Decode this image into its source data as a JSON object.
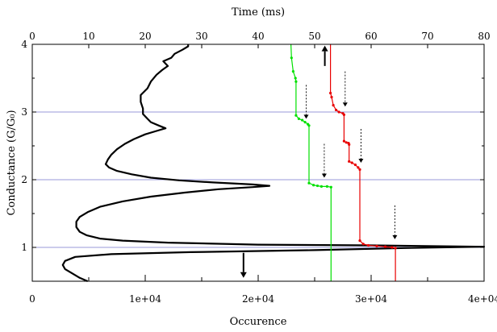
{
  "chart_data": {
    "type": "line",
    "title": "",
    "top_axis": {
      "label": "Time (ms)",
      "range": [
        0,
        80
      ],
      "ticks": [
        "0",
        "10",
        "20",
        "30",
        "40",
        "50",
        "60",
        "70",
        "80"
      ]
    },
    "bottom_axis": {
      "label": "Occurence",
      "range": [
        0,
        40000
      ],
      "ticks": [
        "0",
        "1e+04",
        "2e+04",
        "3e+04",
        "4e+04"
      ]
    },
    "left_axis": {
      "label": "Conductance (G/G₀)",
      "range": [
        0.5,
        4
      ],
      "ticks": [
        "1",
        "2",
        "3",
        "4"
      ]
    },
    "grid": {
      "horizontal_lines_at": [
        1,
        2,
        3
      ],
      "color": "#9a9ad8"
    },
    "series": [
      {
        "axis": "bottom",
        "color": "#000000",
        "points": [
          [
            4900,
            0.5
          ],
          [
            4200,
            0.55
          ],
          [
            3500,
            0.62
          ],
          [
            2900,
            0.68
          ],
          [
            2700,
            0.74
          ],
          [
            2900,
            0.8
          ],
          [
            3800,
            0.86
          ],
          [
            7000,
            0.9
          ],
          [
            14000,
            0.93
          ],
          [
            25000,
            0.96
          ],
          [
            33000,
            0.99
          ],
          [
            40000,
            1.01
          ],
          [
            30000,
            1.03
          ],
          [
            20000,
            1.04
          ],
          [
            12000,
            1.07
          ],
          [
            8000,
            1.1
          ],
          [
            6000,
            1.13
          ],
          [
            4800,
            1.18
          ],
          [
            4200,
            1.23
          ],
          [
            3900,
            1.3
          ],
          [
            3900,
            1.38
          ],
          [
            4200,
            1.45
          ],
          [
            4900,
            1.52
          ],
          [
            6000,
            1.6
          ],
          [
            8000,
            1.68
          ],
          [
            10500,
            1.75
          ],
          [
            13500,
            1.81
          ],
          [
            16500,
            1.86
          ],
          [
            19500,
            1.89
          ],
          [
            21000,
            1.91
          ],
          [
            19500,
            1.93
          ],
          [
            16000,
            1.96
          ],
          [
            13000,
            1.99
          ],
          [
            10500,
            2.03
          ],
          [
            8800,
            2.08
          ],
          [
            7500,
            2.13
          ],
          [
            6800,
            2.18
          ],
          [
            6500,
            2.23
          ],
          [
            6700,
            2.3
          ],
          [
            7000,
            2.37
          ],
          [
            7500,
            2.45
          ],
          [
            8200,
            2.53
          ],
          [
            9000,
            2.6
          ],
          [
            10000,
            2.67
          ],
          [
            11000,
            2.72
          ],
          [
            11800,
            2.76
          ],
          [
            11200,
            2.8
          ],
          [
            10500,
            2.85
          ],
          [
            10200,
            2.9
          ],
          [
            9800,
            2.97
          ],
          [
            9800,
            3.05
          ],
          [
            9600,
            3.15
          ],
          [
            9600,
            3.25
          ],
          [
            10200,
            3.35
          ],
          [
            10500,
            3.45
          ],
          [
            11000,
            3.55
          ],
          [
            11500,
            3.62
          ],
          [
            12000,
            3.68
          ],
          [
            11600,
            3.75
          ],
          [
            12300,
            3.8
          ],
          [
            12600,
            3.86
          ],
          [
            13300,
            3.92
          ],
          [
            13800,
            3.97
          ],
          [
            13800,
            4.0
          ]
        ]
      },
      {
        "axis": "top",
        "color": "#00e000",
        "points": [
          [
            45.8,
            4.0
          ],
          [
            45.9,
            3.8
          ],
          [
            46.2,
            3.6
          ],
          [
            46.6,
            3.5
          ],
          [
            46.7,
            3.45
          ],
          [
            46.7,
            2.95
          ],
          [
            47.2,
            2.9
          ],
          [
            47.8,
            2.88
          ],
          [
            48.3,
            2.85
          ],
          [
            48.8,
            2.82
          ],
          [
            49.0,
            2.8
          ],
          [
            49.0,
            1.95
          ],
          [
            49.8,
            1.92
          ],
          [
            50.5,
            1.91
          ],
          [
            51.2,
            1.9
          ],
          [
            52.2,
            1.9
          ],
          [
            52.9,
            1.89
          ],
          [
            52.9,
            0.5
          ]
        ]
      },
      {
        "axis": "top",
        "color": "#e80000",
        "points": [
          [
            52.8,
            4.0
          ],
          [
            52.8,
            3.28
          ],
          [
            53.0,
            3.22
          ],
          [
            53.3,
            3.1
          ],
          [
            53.8,
            3.03
          ],
          [
            54.3,
            3.0
          ],
          [
            55.0,
            2.98
          ],
          [
            55.2,
            2.96
          ],
          [
            55.2,
            2.57
          ],
          [
            55.6,
            2.55
          ],
          [
            56.0,
            2.54
          ],
          [
            56.1,
            2.52
          ],
          [
            56.1,
            2.27
          ],
          [
            56.6,
            2.25
          ],
          [
            57.2,
            2.22
          ],
          [
            57.7,
            2.18
          ],
          [
            58.0,
            2.15
          ],
          [
            58.0,
            1.1
          ],
          [
            58.6,
            1.05
          ],
          [
            59.5,
            1.03
          ],
          [
            61.0,
            1.02
          ],
          [
            62.5,
            1.01
          ],
          [
            63.7,
            1.0
          ],
          [
            64.3,
            0.99
          ],
          [
            64.3,
            0.5
          ]
        ]
      }
    ],
    "arrows": [
      {
        "style": "solid",
        "axis": "bottom",
        "x": 18700,
        "y_from": 0.92,
        "y_to": 0.55
      },
      {
        "style": "solid",
        "axis": "top",
        "x": 51.8,
        "y_from": 3.68,
        "y_to": 3.98
      },
      {
        "style": "dashed",
        "axis": "top",
        "x": 48.5,
        "y_from": 3.4,
        "y_to": 2.9
      },
      {
        "style": "dashed",
        "axis": "top",
        "x": 51.7,
        "y_from": 2.53,
        "y_to": 2.03
      },
      {
        "style": "dashed",
        "axis": "top",
        "x": 55.4,
        "y_from": 3.6,
        "y_to": 3.08
      },
      {
        "style": "dashed",
        "axis": "top",
        "x": 58.2,
        "y_from": 2.75,
        "y_to": 2.25
      },
      {
        "style": "dashed",
        "axis": "top",
        "x": 64.2,
        "y_from": 1.62,
        "y_to": 1.12
      }
    ]
  }
}
